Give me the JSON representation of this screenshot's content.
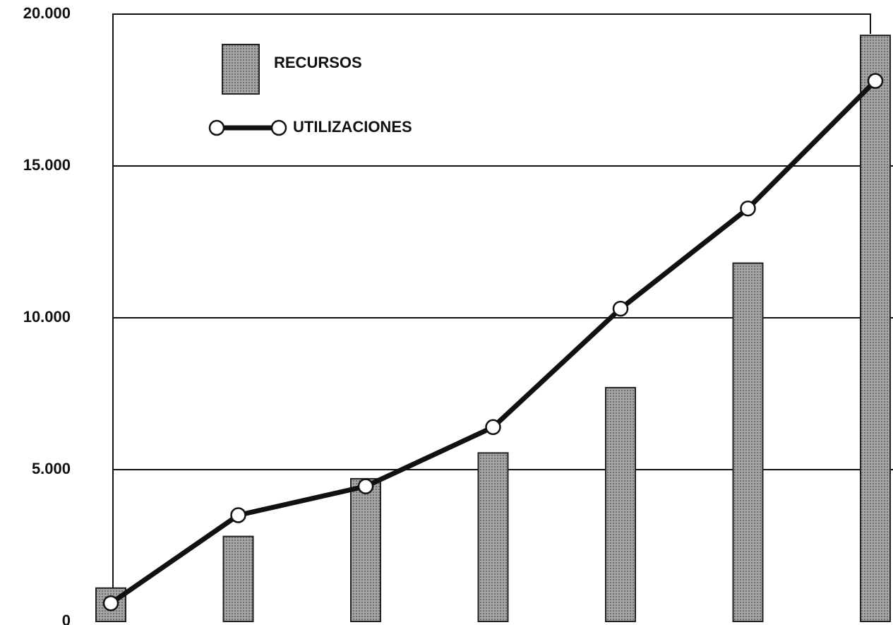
{
  "chart_data": {
    "type": "bar",
    "categories": [
      null,
      null,
      null,
      null,
      null,
      null,
      null
    ],
    "series": [
      {
        "name": "RECURSOS",
        "type": "bar",
        "color": "#8f8f8f",
        "values": [
          1100,
          2800,
          4700,
          5550,
          7700,
          11800,
          19300
        ]
      },
      {
        "name": "UTILIZACIONES",
        "type": "line",
        "color": "#111111",
        "values": [
          600,
          3500,
          4450,
          6400,
          10300,
          13600,
          17800
        ]
      }
    ],
    "ylim": [
      0,
      20000
    ],
    "yticks": [
      0,
      {
        "value": 5000,
        "label": "5.000"
      },
      {
        "value": 10000,
        "label": "10.000"
      },
      {
        "value": 15000,
        "label": "15.000"
      },
      {
        "value": 20000,
        "label": "20.000"
      }
    ],
    "grid": true
  }
}
